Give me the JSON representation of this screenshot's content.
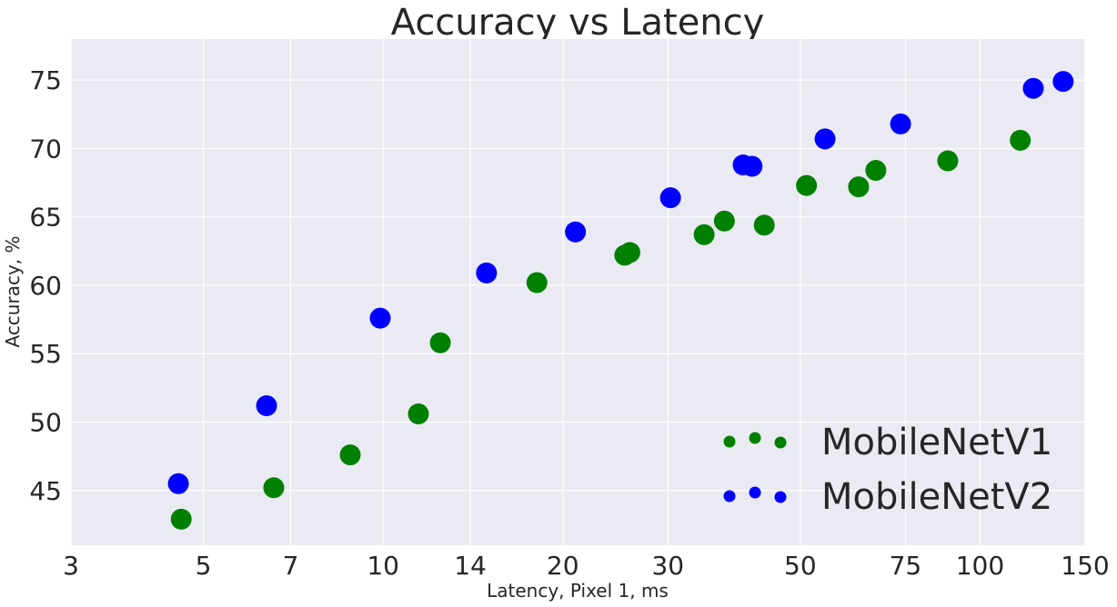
{
  "chart_data": {
    "type": "scatter",
    "title": "Accuracy vs Latency",
    "xlabel": "Latency, Pixel 1, ms",
    "ylabel": "Accuracy, %",
    "xscale": "log",
    "xlim": [
      3,
      150
    ],
    "ylim": [
      41,
      78
    ],
    "xticks": [
      3,
      5,
      7,
      10,
      14,
      20,
      30,
      50,
      75,
      100,
      150
    ],
    "yticks": [
      45,
      50,
      55,
      60,
      65,
      70,
      75
    ],
    "grid": true,
    "background": "#eaeaf2",
    "legend_placement": "lower-right",
    "series": [
      {
        "name": "MobileNetV1",
        "color": "#008000",
        "points": [
          [
            4.59,
            42.9
          ],
          [
            6.56,
            45.2
          ],
          [
            8.81,
            47.6
          ],
          [
            11.46,
            50.6
          ],
          [
            12.47,
            55.8
          ],
          [
            18.1,
            60.2
          ],
          [
            25.4,
            62.2
          ],
          [
            25.9,
            62.4
          ],
          [
            34.5,
            63.7
          ],
          [
            37.3,
            64.7
          ],
          [
            43.5,
            64.4
          ],
          [
            51.2,
            67.3
          ],
          [
            62.6,
            67.2
          ],
          [
            66.9,
            68.4
          ],
          [
            88.3,
            69.1
          ],
          [
            116.8,
            70.6
          ]
        ]
      },
      {
        "name": "MobileNetV2",
        "color": "#0000ff",
        "points": [
          [
            4.54,
            45.5
          ],
          [
            6.38,
            51.2
          ],
          [
            9.89,
            57.6
          ],
          [
            14.9,
            60.9
          ],
          [
            21.0,
            63.9
          ],
          [
            30.3,
            66.4
          ],
          [
            40.1,
            68.8
          ],
          [
            41.5,
            68.7
          ],
          [
            55.0,
            70.7
          ],
          [
            73.6,
            71.8
          ],
          [
            122.8,
            74.4
          ],
          [
            137.8,
            74.9
          ]
        ]
      }
    ]
  }
}
